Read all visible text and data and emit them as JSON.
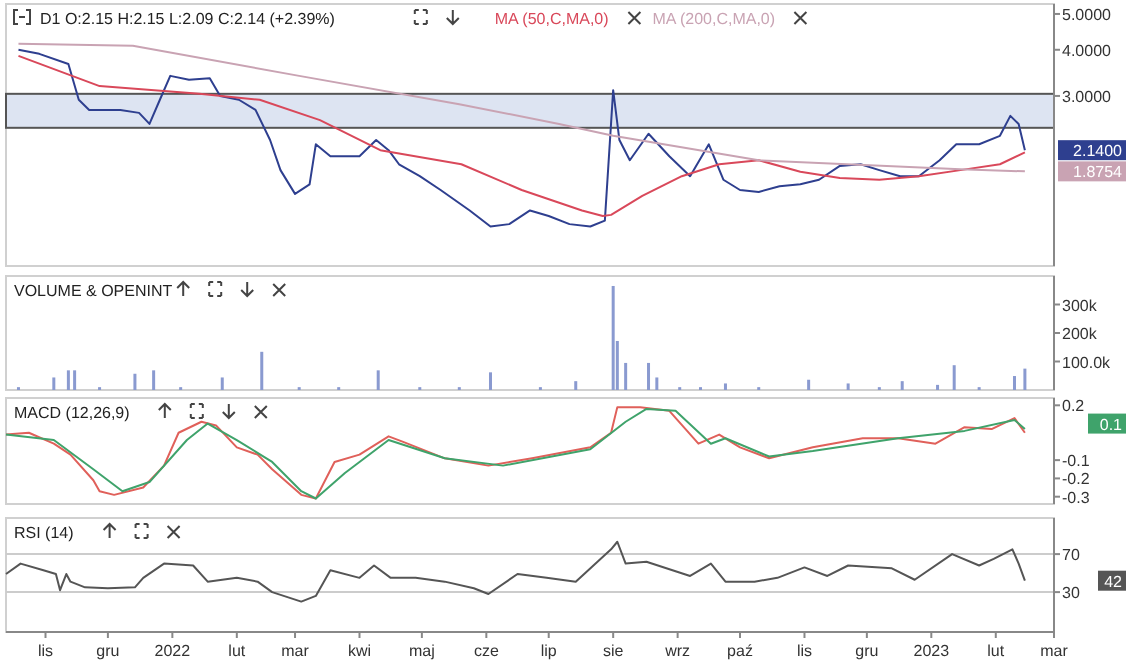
{
  "chart_data": [
    {
      "type": "line",
      "title": "D1 O:2.15 H:2.15 L:2.09 C:2.14 (+2.39%)",
      "log": true,
      "legend": "top",
      "tick_labels": "y",
      "xlim": [
        "2021-10-13",
        "2023-03-01"
      ],
      "ylim": [
        1.04,
        5.32
      ],
      "yticks": [
        {
          "value": 3,
          "label": "3.0000"
        },
        {
          "value": 4,
          "label": "4.0000"
        },
        {
          "value": 5,
          "label": "5.0000"
        }
      ],
      "bands": [
        {
          "axis": "y",
          "from": 2.46,
          "to": 3.04,
          "color": "#dde4f2"
        }
      ],
      "annotations": [
        "2.1400",
        "1.8754"
      ],
      "series": [
        {
          "color": "#2e3f8f",
          "x": [
            "2021-10-19",
            "2021-10-29",
            "2021-11-12",
            "2021-11-17",
            "2021-11-22",
            "2021-12-07",
            "2021-12-16",
            "2021-12-21",
            "2021-12-26",
            "2021-12-31",
            "2022-01-09",
            "2022-01-19",
            "2022-01-24",
            "2022-02-02",
            "2022-02-10",
            "2022-02-17",
            "2022-02-22",
            "2022-03-01",
            "2022-03-08",
            "2022-03-11",
            "2022-03-18",
            "2022-04-01",
            "2022-04-09",
            "2022-04-15",
            "2022-04-20",
            "2022-04-30",
            "2022-05-10",
            "2022-05-24",
            "2022-06-03",
            "2022-06-12",
            "2022-06-22",
            "2022-07-01",
            "2022-07-11",
            "2022-07-21",
            "2022-07-28",
            "2022-08-01",
            "2022-08-04",
            "2022-08-09",
            "2022-08-18",
            "2022-08-28",
            "2022-09-07",
            "2022-09-16",
            "2022-09-23",
            "2022-10-01",
            "2022-10-10",
            "2022-10-20",
            "2022-10-30",
            "2022-11-08",
            "2022-11-18",
            "2022-11-28",
            "2022-12-07",
            "2022-12-17",
            "2022-12-26",
            "2023-01-05",
            "2023-01-13",
            "2023-01-24",
            "2023-02-03",
            "2023-02-08",
            "2023-02-12",
            "2023-02-15"
          ],
          "values": [
            4.0,
            3.9,
            3.66,
            2.93,
            2.75,
            2.75,
            2.7,
            2.52,
            2.93,
            3.4,
            3.32,
            3.35,
            3.0,
            2.93,
            2.75,
            2.28,
            1.89,
            1.63,
            1.73,
            2.22,
            2.06,
            2.06,
            2.28,
            2.14,
            1.96,
            1.82,
            1.67,
            1.47,
            1.33,
            1.35,
            1.47,
            1.42,
            1.35,
            1.33,
            1.38,
            3.11,
            2.28,
            2.01,
            2.37,
            2.06,
            1.82,
            2.22,
            1.78,
            1.67,
            1.65,
            1.71,
            1.73,
            1.78,
            1.94,
            1.96,
            1.89,
            1.82,
            1.82,
            2.01,
            2.22,
            2.22,
            2.34,
            2.65,
            2.52,
            2.14
          ]
        },
        {
          "name": "MA (50,C,MA,0)",
          "color": "#d9485a",
          "x": [
            "2021-10-19",
            "2021-11-27",
            "2022-01-14",
            "2022-02-12",
            "2022-03-13",
            "2022-04-11",
            "2022-05-20",
            "2022-06-18",
            "2022-07-17",
            "2022-07-27",
            "2022-07-31",
            "2022-08-15",
            "2022-09-03",
            "2022-09-21",
            "2022-10-10",
            "2022-10-30",
            "2022-11-18",
            "2022-12-07",
            "2022-12-26",
            "2023-01-15",
            "2023-02-03",
            "2023-02-15"
          ],
          "values": [
            3.85,
            3.19,
            3.04,
            2.93,
            2.58,
            2.14,
            1.96,
            1.67,
            1.47,
            1.42,
            1.43,
            1.61,
            1.82,
            1.96,
            2.01,
            1.87,
            1.8,
            1.78,
            1.82,
            1.89,
            1.96,
            2.11
          ]
        },
        {
          "name": "MA (200,C,MA,0)",
          "color": "#c9a3b3",
          "x": [
            "2021-10-19",
            "2021-12-13",
            "2022-03-03",
            "2022-05-19",
            "2022-07-06",
            "2022-08-01",
            "2022-10-10",
            "2023-01-15",
            "2023-02-15"
          ],
          "values": [
            4.15,
            4.1,
            3.4,
            2.85,
            2.52,
            2.34,
            2.01,
            1.9,
            1.8754
          ]
        }
      ]
    },
    {
      "type": "bar",
      "title": "VOLUME & OPENINT",
      "tick_labels": "y",
      "xlim": [
        "2021-10-13",
        "2023-03-01"
      ],
      "ylim": [
        0,
        400000
      ],
      "yticks": [
        {
          "value": 100000,
          "label": "100.0k"
        },
        {
          "value": 200000,
          "label": "200k"
        },
        {
          "value": 300000,
          "label": "300k"
        }
      ],
      "color": "#8a9ad0",
      "x": [
        "2021-10-19",
        "2021-11-05",
        "2021-11-12",
        "2021-11-15",
        "2021-11-27",
        "2021-12-14",
        "2021-12-23",
        "2022-01-05",
        "2022-01-25",
        "2022-02-13",
        "2022-03-03",
        "2022-03-22",
        "2022-04-10",
        "2022-04-30",
        "2022-05-19",
        "2022-06-03",
        "2022-06-27",
        "2022-07-14",
        "2022-08-01",
        "2022-08-03",
        "2022-08-07",
        "2022-08-18",
        "2022-08-22",
        "2022-09-02",
        "2022-09-12",
        "2022-09-24",
        "2022-10-10",
        "2022-11-03",
        "2022-11-22",
        "2022-12-07",
        "2022-12-18",
        "2023-01-04",
        "2023-01-12",
        "2023-01-24",
        "2023-02-10",
        "2023-02-15"
      ],
      "values": [
        10000,
        44000,
        69000,
        69000,
        10000,
        57000,
        69000,
        10000,
        44000,
        134000,
        10000,
        10000,
        69000,
        10000,
        10000,
        62000,
        10000,
        31000,
        365000,
        172000,
        95000,
        95000,
        44000,
        10000,
        10000,
        23000,
        10000,
        36000,
        23000,
        10000,
        31000,
        18000,
        87000,
        10000,
        49000,
        75000
      ]
    },
    {
      "type": "line",
      "title": "MACD (12,26,9)",
      "tick_labels": "y",
      "xlim": [
        "2021-10-13",
        "2023-03-01"
      ],
      "ylim": [
        -0.34,
        0.24
      ],
      "yticks": [
        0.2,
        -0.1,
        -0.2,
        -0.3
      ],
      "annotations": [
        "0.1"
      ],
      "series": [
        {
          "color": "#e0605a",
          "x": [
            "2021-10-13",
            "2021-10-24",
            "2021-11-05",
            "2021-11-13",
            "2021-11-24",
            "2021-11-27",
            "2021-12-04",
            "2021-12-18",
            "2021-12-28",
            "2022-01-04",
            "2022-01-15",
            "2022-01-22",
            "2022-02-01",
            "2022-02-11",
            "2022-02-18",
            "2022-03-04",
            "2022-03-11",
            "2022-03-20",
            "2022-04-01",
            "2022-04-15",
            "2022-04-22",
            "2022-05-12",
            "2022-06-02",
            "2022-06-23",
            "2022-07-21",
            "2022-07-31",
            "2022-08-03",
            "2022-08-14",
            "2022-08-28",
            "2022-09-11",
            "2022-09-21",
            "2022-10-01",
            "2022-10-15",
            "2022-11-05",
            "2022-11-29",
            "2022-12-16",
            "2023-01-03",
            "2023-01-17",
            "2023-01-30",
            "2023-02-10",
            "2023-02-15"
          ],
          "values": [
            0.04,
            0.05,
            -0.01,
            -0.07,
            -0.21,
            -0.27,
            -0.29,
            -0.25,
            -0.13,
            0.05,
            0.11,
            0.09,
            -0.03,
            -0.07,
            -0.15,
            -0.29,
            -0.31,
            -0.11,
            -0.07,
            0.03,
            0.0,
            -0.09,
            -0.13,
            -0.09,
            -0.03,
            0.05,
            0.19,
            0.19,
            0.17,
            -0.01,
            0.04,
            -0.03,
            -0.09,
            -0.03,
            0.02,
            0.02,
            -0.01,
            0.08,
            0.07,
            0.13,
            0.05
          ]
        },
        {
          "color": "#3fa36b",
          "x": [
            "2021-10-13",
            "2021-11-05",
            "2021-11-24",
            "2021-12-08",
            "2021-12-21",
            "2022-01-08",
            "2022-01-18",
            "2022-02-01",
            "2022-02-18",
            "2022-03-04",
            "2022-03-11",
            "2022-03-25",
            "2022-04-15",
            "2022-05-12",
            "2022-06-09",
            "2022-07-21",
            "2022-08-07",
            "2022-08-17",
            "2022-08-31",
            "2022-09-17",
            "2022-09-24",
            "2022-10-15",
            "2022-11-05",
            "2022-12-16",
            "2023-01-17",
            "2023-02-10",
            "2023-02-15"
          ],
          "values": [
            0.04,
            0.01,
            -0.15,
            -0.27,
            -0.22,
            0.01,
            0.1,
            0.01,
            -0.11,
            -0.27,
            -0.31,
            -0.17,
            0.01,
            -0.09,
            -0.13,
            -0.04,
            0.11,
            0.18,
            0.17,
            -0.01,
            0.02,
            -0.08,
            -0.05,
            0.02,
            0.06,
            0.12,
            0.07
          ]
        }
      ]
    },
    {
      "type": "line",
      "title": "RSI (14)",
      "xlim": [
        "2021-10-13",
        "2023-03-01"
      ],
      "ylim": [
        -12,
        108
      ],
      "yticks": [
        70,
        30
      ],
      "xticks": [
        {
          "value": "2021-11-01",
          "label": "lis"
        },
        {
          "value": "2021-12-01",
          "label": "gru"
        },
        {
          "value": "2022-01-01",
          "label": "2022"
        },
        {
          "value": "2022-02-01",
          "label": "lut"
        },
        {
          "value": "2022-03-01",
          "label": "mar"
        },
        {
          "value": "2022-04-01",
          "label": "kwi"
        },
        {
          "value": "2022-05-01",
          "label": "maj"
        },
        {
          "value": "2022-06-01",
          "label": "cze"
        },
        {
          "value": "2022-07-01",
          "label": "lip"
        },
        {
          "value": "2022-08-01",
          "label": "sie"
        },
        {
          "value": "2022-09-01",
          "label": "wrz"
        },
        {
          "value": "2022-10-01",
          "label": "paź"
        },
        {
          "value": "2022-11-01",
          "label": "lis"
        },
        {
          "value": "2022-12-01",
          "label": "gru"
        },
        {
          "value": "2023-01-01",
          "label": "2023"
        },
        {
          "value": "2023-02-01",
          "label": "lut"
        },
        {
          "value": "2023-03-01",
          "label": "mar"
        }
      ],
      "ref_lines": [
        {
          "axis": "y",
          "value": 70,
          "color": "#cccccc"
        },
        {
          "axis": "y",
          "value": 30,
          "color": "#cccccc"
        }
      ],
      "annotations": [
        "42"
      ],
      "series": [
        {
          "color": "#555555",
          "x": [
            "2021-10-13",
            "2021-10-20",
            "2021-10-31",
            "2021-11-06",
            "2021-11-08",
            "2021-11-11",
            "2021-11-13",
            "2021-11-20",
            "2021-12-01",
            "2021-12-14",
            "2021-12-18",
            "2021-12-28",
            "2022-01-11",
            "2022-01-18",
            "2022-02-01",
            "2022-02-11",
            "2022-02-18",
            "2022-03-04",
            "2022-03-11",
            "2022-03-18",
            "2022-04-01",
            "2022-04-08",
            "2022-04-16",
            "2022-04-28",
            "2022-05-12",
            "2022-05-26",
            "2022-06-02",
            "2022-06-16",
            "2022-06-30",
            "2022-07-14",
            "2022-07-31",
            "2022-08-03",
            "2022-08-07",
            "2022-08-17",
            "2022-09-07",
            "2022-09-17",
            "2022-09-24",
            "2022-10-08",
            "2022-10-19",
            "2022-11-01",
            "2022-11-12",
            "2022-11-22",
            "2022-12-13",
            "2022-12-24",
            "2023-01-11",
            "2023-01-24",
            "2023-01-31",
            "2023-02-09",
            "2023-02-12",
            "2023-02-15"
          ],
          "values": [
            49,
            60,
            53,
            49,
            32,
            49,
            41,
            35,
            34,
            35,
            45,
            60,
            58,
            41,
            45,
            41,
            30,
            20,
            26,
            53,
            45,
            58,
            45,
            45,
            41,
            34,
            28,
            49,
            45,
            41,
            75,
            83,
            60,
            62,
            47,
            60,
            41,
            41,
            45,
            56,
            47,
            58,
            55,
            43,
            70,
            58,
            65,
            75,
            60,
            42
          ]
        }
      ]
    }
  ]
}
